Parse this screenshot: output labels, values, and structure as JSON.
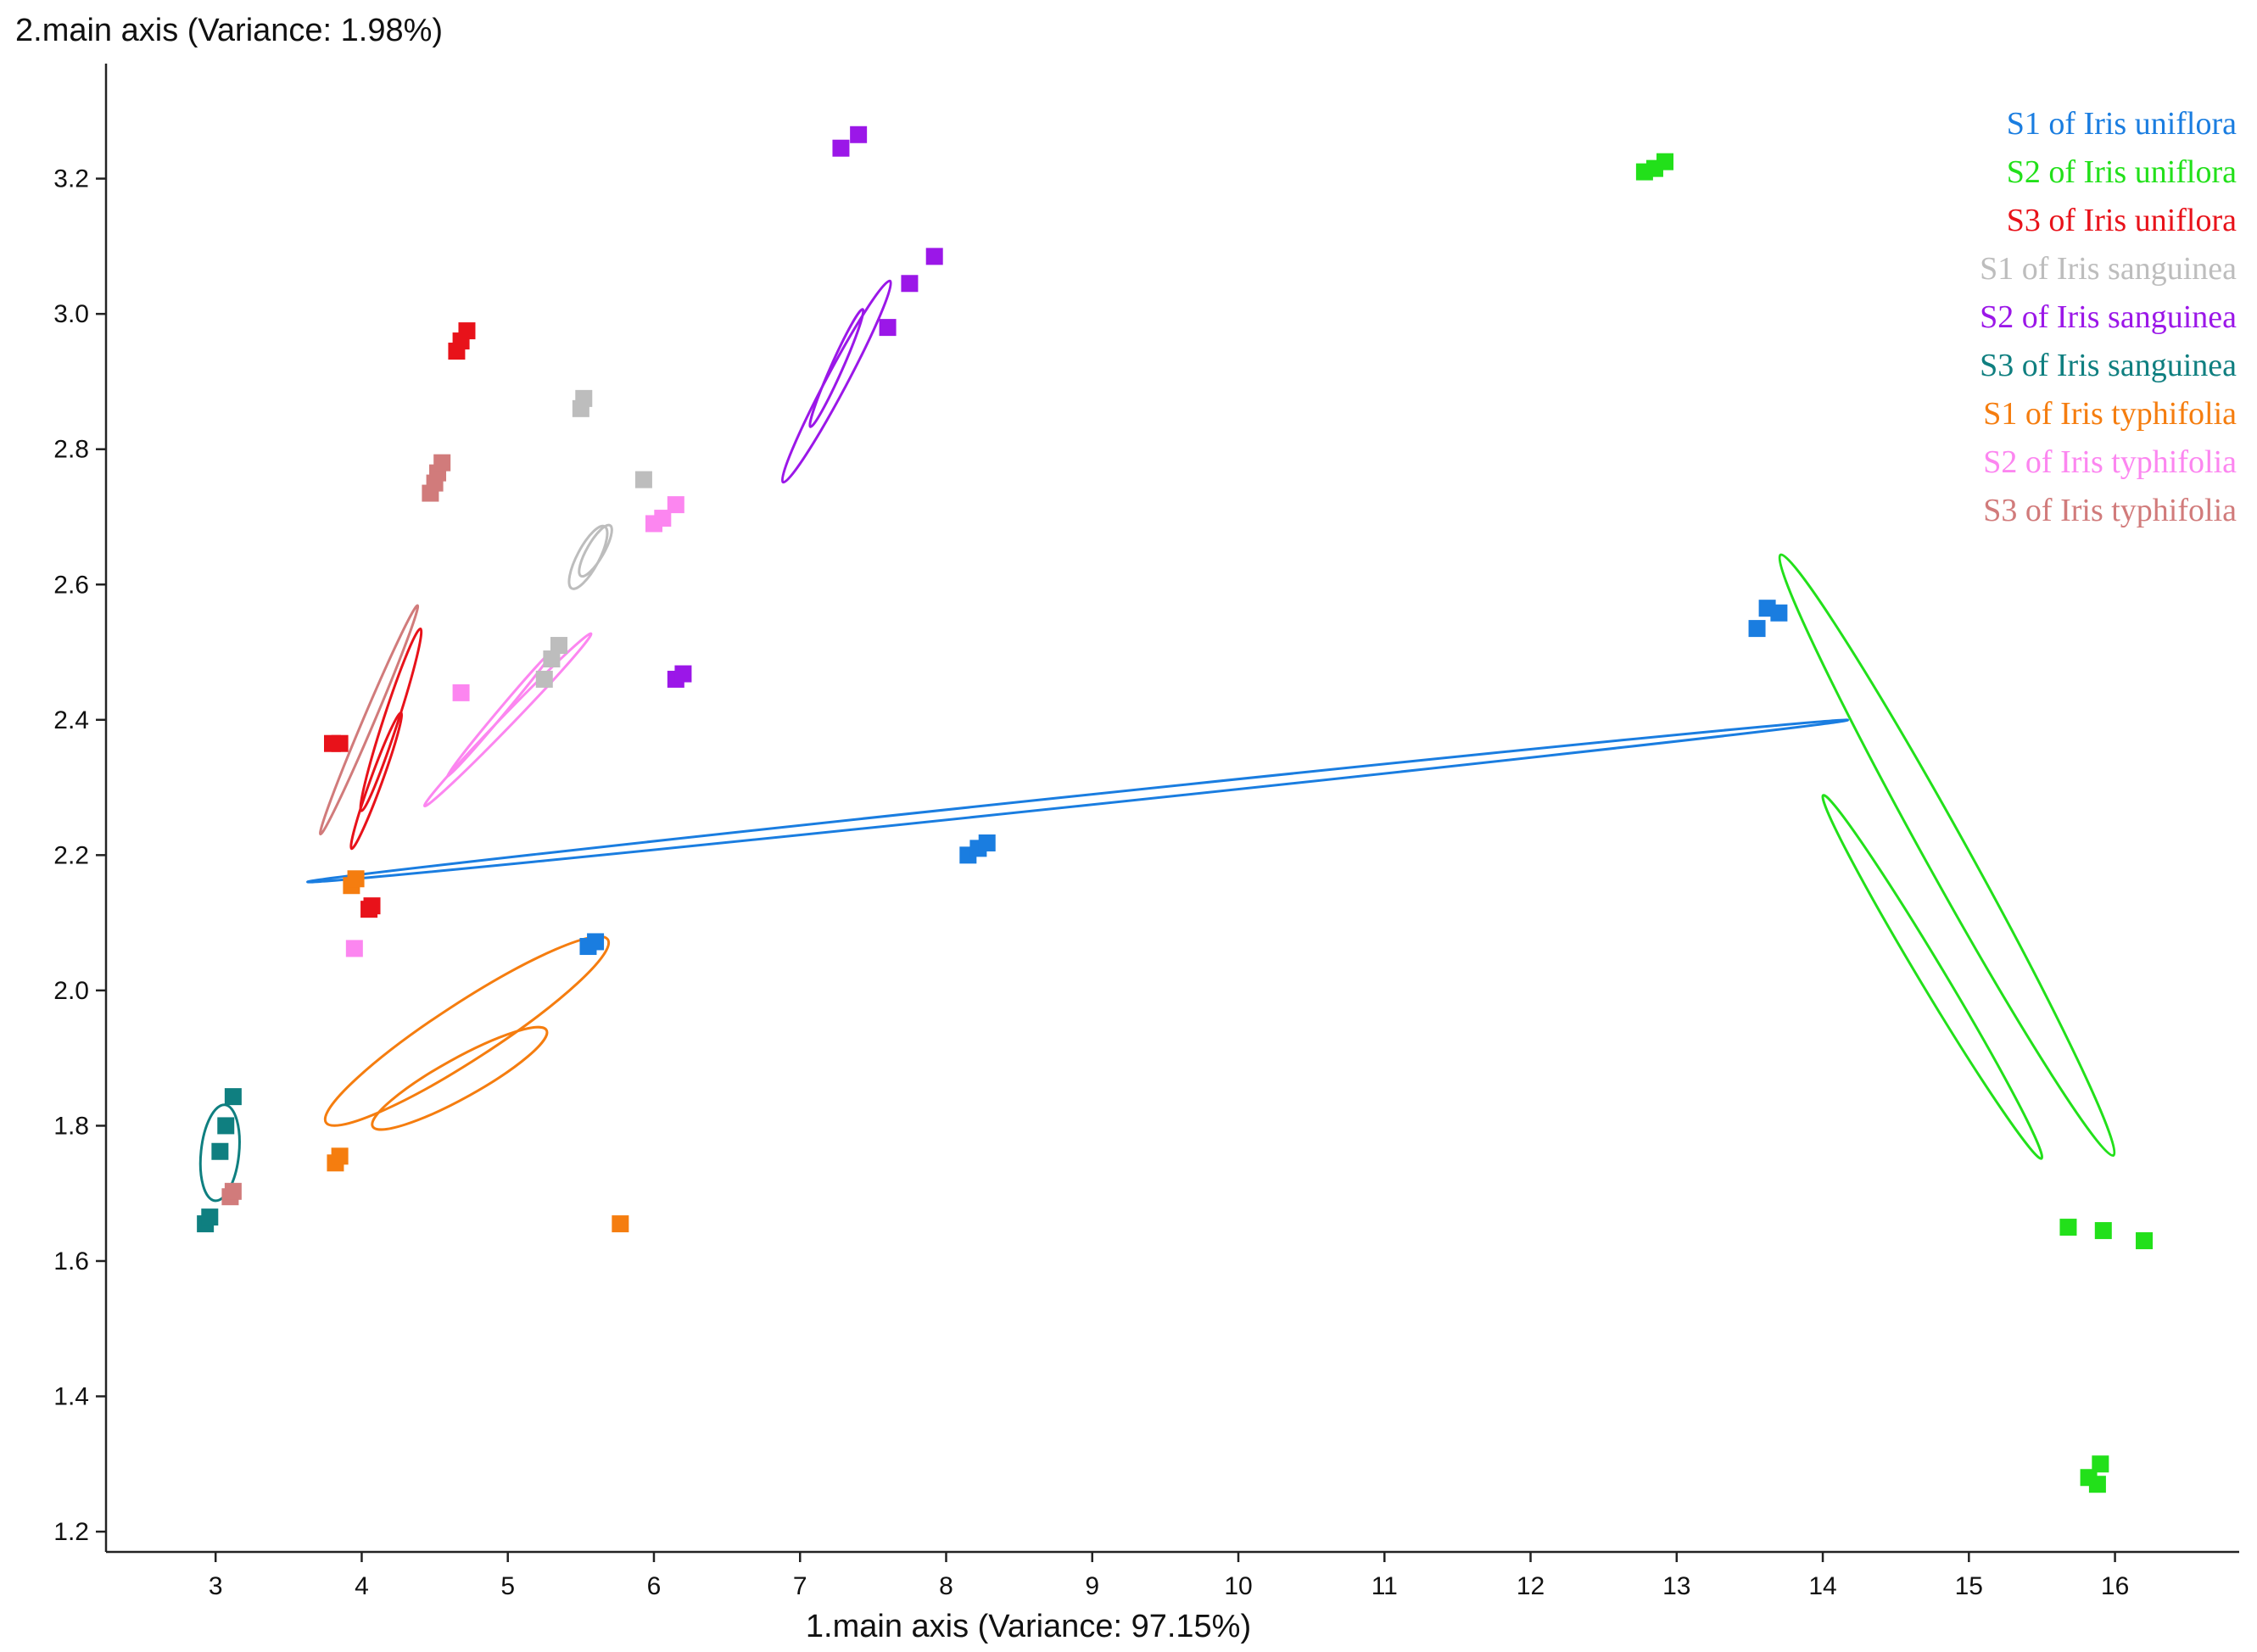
{
  "chart_data": {
    "type": "scatter",
    "title": "",
    "xlabel": "1.main axis (Variance: 97.15%)",
    "ylabel": "2.main axis (Variance: 1.98%)",
    "xlim": [
      2.25,
      16.85
    ],
    "ylim": [
      1.17,
      3.37
    ],
    "xticks": [
      3,
      4,
      5,
      6,
      7,
      8,
      9,
      10,
      11,
      12,
      13,
      14,
      15,
      16
    ],
    "yticks": [
      1.2,
      1.4,
      1.6,
      1.8,
      2.0,
      2.2,
      2.4,
      2.6,
      2.8,
      3.0,
      3.2
    ],
    "grid": false,
    "legend_position": "top-right",
    "series": [
      {
        "name": "S1 of Iris uniflora",
        "color": "#1a7de0",
        "points": [
          [
            5.55,
            2.065
          ],
          [
            5.6,
            2.072
          ],
          [
            8.15,
            2.2
          ],
          [
            8.22,
            2.21
          ],
          [
            8.28,
            2.218
          ],
          [
            13.55,
            2.535
          ],
          [
            13.62,
            2.565
          ],
          [
            13.7,
            2.558
          ]
        ],
        "ellipses": [
          {
            "cx": 8.9,
            "cy": 2.28,
            "rx": 5.3,
            "ry": 0.035,
            "angle_deg": 6.0
          }
        ]
      },
      {
        "name": "S2 of Iris uniflora",
        "color": "#22e01a",
        "points": [
          [
            12.78,
            3.21
          ],
          [
            12.85,
            3.215
          ],
          [
            12.92,
            3.225
          ],
          [
            15.68,
            1.65
          ],
          [
            15.92,
            1.645
          ],
          [
            16.2,
            1.63
          ],
          [
            15.82,
            1.28
          ],
          [
            15.88,
            1.27
          ],
          [
            15.9,
            1.3
          ]
        ],
        "ellipses": [
          {
            "cx": 14.85,
            "cy": 2.2,
            "rx": 2.35,
            "ry": 0.145,
            "angle_deg": -61.0
          },
          {
            "cx": 14.75,
            "cy": 2.02,
            "rx": 1.45,
            "ry": 0.085,
            "angle_deg": -59.0
          }
        ]
      },
      {
        "name": "S3 of Iris uniflora",
        "color": "#e8121a",
        "points": [
          [
            3.8,
            2.365
          ],
          [
            3.85,
            2.365
          ],
          [
            4.65,
            2.945
          ],
          [
            4.68,
            2.96
          ],
          [
            4.72,
            2.975
          ],
          [
            4.05,
            2.12
          ],
          [
            4.07,
            2.125
          ]
        ],
        "ellipses": [
          {
            "cx": 4.2,
            "cy": 2.4,
            "rx": 0.655,
            "ry": 0.05,
            "angle_deg": 72.0
          },
          {
            "cx": 4.1,
            "cy": 2.31,
            "rx": 0.495,
            "ry": 0.04,
            "angle_deg": 70.0
          }
        ]
      },
      {
        "name": "S1 of Iris sanguinea",
        "color": "#bdbdbd",
        "points": [
          [
            5.25,
            2.46
          ],
          [
            5.3,
            2.49
          ],
          [
            5.35,
            2.51
          ],
          [
            5.5,
            2.86
          ],
          [
            5.52,
            2.875
          ],
          [
            5.93,
            2.755
          ]
        ],
        "ellipses": [
          {
            "cx": 5.6,
            "cy": 2.65,
            "rx": 0.2,
            "ry": 0.058,
            "angle_deg": 60.0
          },
          {
            "cx": 5.55,
            "cy": 2.64,
            "rx": 0.24,
            "ry": 0.075,
            "angle_deg": 62.0
          }
        ]
      },
      {
        "name": "S2 of Iris sanguinea",
        "color": "#9b17e8",
        "points": [
          [
            7.28,
            3.245
          ],
          [
            7.4,
            3.265
          ],
          [
            6.15,
            2.46
          ],
          [
            6.2,
            2.468
          ],
          [
            7.6,
            2.98
          ],
          [
            7.75,
            3.045
          ],
          [
            7.92,
            3.085
          ]
        ],
        "ellipses": [
          {
            "cx": 7.25,
            "cy": 2.9,
            "rx": 0.78,
            "ry": 0.07,
            "angle_deg": 62.0
          },
          {
            "cx": 7.25,
            "cy": 2.92,
            "rx": 0.44,
            "ry": 0.04,
            "angle_deg": 66.0
          }
        ]
      },
      {
        "name": "S3 of Iris sanguinea",
        "color": "#0f7f80",
        "points": [
          [
            2.93,
            1.655
          ],
          [
            2.96,
            1.665
          ],
          [
            3.03,
            1.762
          ],
          [
            3.07,
            1.8
          ],
          [
            3.12,
            1.843
          ]
        ],
        "ellipses": [
          {
            "cx": 3.03,
            "cy": 1.76,
            "rx": 0.33,
            "ry": 0.13,
            "angle_deg": 84.0
          }
        ]
      },
      {
        "name": "S1 of Iris typhifolia",
        "color": "#f57d0f",
        "points": [
          [
            3.93,
            2.155
          ],
          [
            3.96,
            2.165
          ],
          [
            3.82,
            1.745
          ],
          [
            3.85,
            1.755
          ],
          [
            5.77,
            1.655
          ]
        ],
        "ellipses": [
          {
            "cx": 4.67,
            "cy": 1.87,
            "rx": 0.68,
            "ry": 0.135,
            "angle_deg": 29.0
          },
          {
            "cx": 4.72,
            "cy": 1.94,
            "rx": 1.15,
            "ry": 0.195,
            "angle_deg": 33.0
          }
        ]
      },
      {
        "name": "S2 of Iris typhifolia",
        "color": "#fc86f0",
        "points": [
          [
            3.95,
            2.062
          ],
          [
            4.68,
            2.44
          ],
          [
            6.0,
            2.69
          ],
          [
            6.06,
            2.698
          ],
          [
            6.15,
            2.718
          ]
        ],
        "ellipses": [
          {
            "cx": 4.95,
            "cy": 2.41,
            "rx": 0.57,
            "ry": 0.023,
            "angle_deg": 50.0
          },
          {
            "cx": 5.0,
            "cy": 2.4,
            "rx": 0.82,
            "ry": 0.04,
            "angle_deg": 46.0
          }
        ]
      },
      {
        "name": "S3 of Iris typhifolia",
        "color": "#d17b7b",
        "points": [
          [
            4.47,
            2.735
          ],
          [
            4.5,
            2.75
          ],
          [
            4.52,
            2.765
          ],
          [
            4.55,
            2.78
          ],
          [
            3.1,
            1.695
          ],
          [
            3.12,
            1.703
          ]
        ],
        "ellipses": [
          {
            "cx": 4.05,
            "cy": 2.4,
            "rx": 0.85,
            "ry": 0.038,
            "angle_deg": 67.0
          }
        ]
      }
    ]
  }
}
